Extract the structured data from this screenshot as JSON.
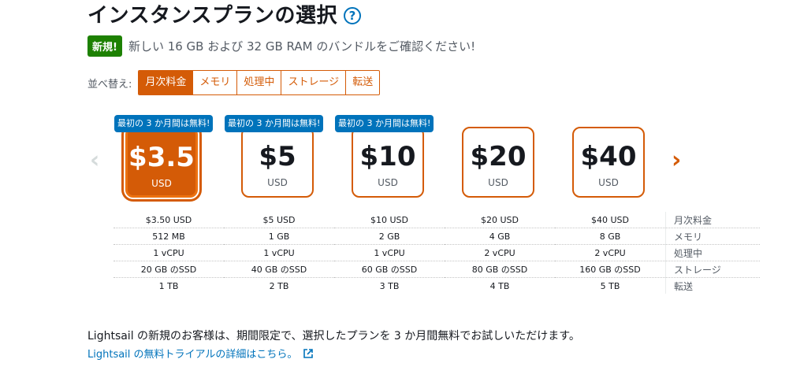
{
  "page": {
    "title": "インスタンスプランの選択",
    "help_icon": "?",
    "new_badge": "新規!",
    "new_text": "新しい 16 GB および 32 GB RAM のバンドルをご確認ください!"
  },
  "sort": {
    "label": "並べ替え:",
    "options": [
      "月次料金",
      "メモリ",
      "処理中",
      "ストレージ",
      "転送"
    ],
    "active": "月次料金"
  },
  "carousel": {
    "prev_icon": "‹",
    "next_icon": "›",
    "plans": [
      {
        "price": "$3.5",
        "currency": "USD",
        "promo": "最初の 3 か月間は無料!",
        "selected": true
      },
      {
        "price": "$5",
        "currency": "USD",
        "promo": "最初の 3 か月間は無料!",
        "selected": false
      },
      {
        "price": "$10",
        "currency": "USD",
        "promo": "最初の 3 か月間は無料!",
        "selected": false
      },
      {
        "price": "$20",
        "currency": "USD",
        "promo": "",
        "selected": false
      },
      {
        "price": "$40",
        "currency": "USD",
        "promo": "",
        "selected": false
      }
    ]
  },
  "specs": {
    "rows": [
      {
        "label": "月次料金",
        "values": [
          "$3.50 USD",
          "$5 USD",
          "$10 USD",
          "$20 USD",
          "$40 USD"
        ]
      },
      {
        "label": "メモリ",
        "values": [
          "512 MB",
          "1 GB",
          "2 GB",
          "4 GB",
          "8 GB"
        ]
      },
      {
        "label": "処理中",
        "values": [
          "1 vCPU",
          "1 vCPU",
          "1 vCPU",
          "2 vCPU",
          "2 vCPU"
        ]
      },
      {
        "label": "ストレージ",
        "values": [
          "20 GB のSSD",
          "40 GB のSSD",
          "60 GB のSSD",
          "80 GB のSSD",
          "160 GB のSSD"
        ]
      },
      {
        "label": "転送",
        "values": [
          "1 TB",
          "2 TB",
          "3 TB",
          "4 TB",
          "5 TB"
        ]
      }
    ]
  },
  "footer": {
    "text": "Lightsail の新規のお客様は、期間限定で、選択したプランを 3 か月間無料でお試しいただけます。",
    "link": "Lightsail の無料トライアルの詳細はこちら。"
  },
  "colors": {
    "accent": "#d45b07",
    "link": "#0073bb",
    "new_badge": "#1d8102"
  }
}
